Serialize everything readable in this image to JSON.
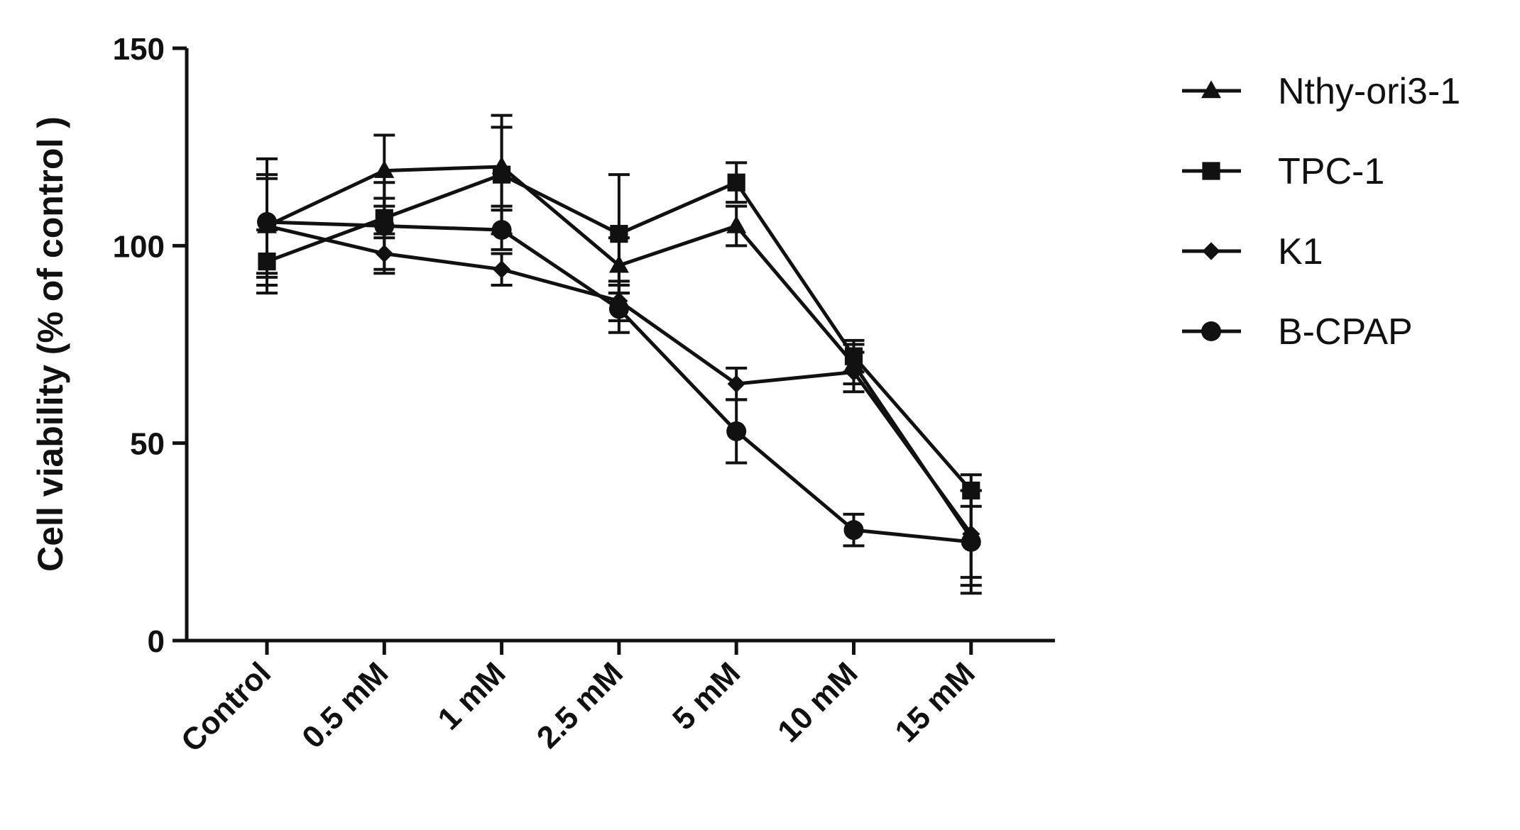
{
  "chart_data": {
    "type": "line",
    "title": "",
    "xlabel": "",
    "ylabel": "Cell viability (% of control )",
    "categories": [
      "Control",
      "0.5 mM",
      "1 mM",
      "2.5 mM",
      "5 mM",
      "10 mM",
      "15 mM"
    ],
    "ylim": [
      0,
      150
    ],
    "yticks": [
      0,
      50,
      100,
      150
    ],
    "grid": false,
    "legend_position": "top-right",
    "series": [
      {
        "name": "Nthy-ori3-1",
        "marker": "triangle",
        "values": [
          105,
          119,
          120,
          95,
          105,
          70,
          26
        ],
        "errors": [
          13,
          9,
          10,
          7,
          5,
          5,
          12
        ]
      },
      {
        "name": "TPC-1",
        "marker": "square",
        "values": [
          96,
          107,
          118,
          103,
          116,
          72,
          38
        ],
        "errors": [
          8,
          5,
          15,
          15,
          5,
          4,
          4
        ]
      },
      {
        "name": "K1",
        "marker": "diamond",
        "values": [
          105,
          98,
          94,
          86,
          65,
          68,
          27
        ],
        "errors": [
          12,
          5,
          4,
          5,
          4,
          5,
          11
        ]
      },
      {
        "name": "B-CPAP",
        "marker": "circle",
        "values": [
          106,
          105,
          104,
          84,
          53,
          28,
          25
        ],
        "errors": [
          16,
          11,
          5,
          6,
          8,
          4,
          13
        ]
      }
    ]
  }
}
